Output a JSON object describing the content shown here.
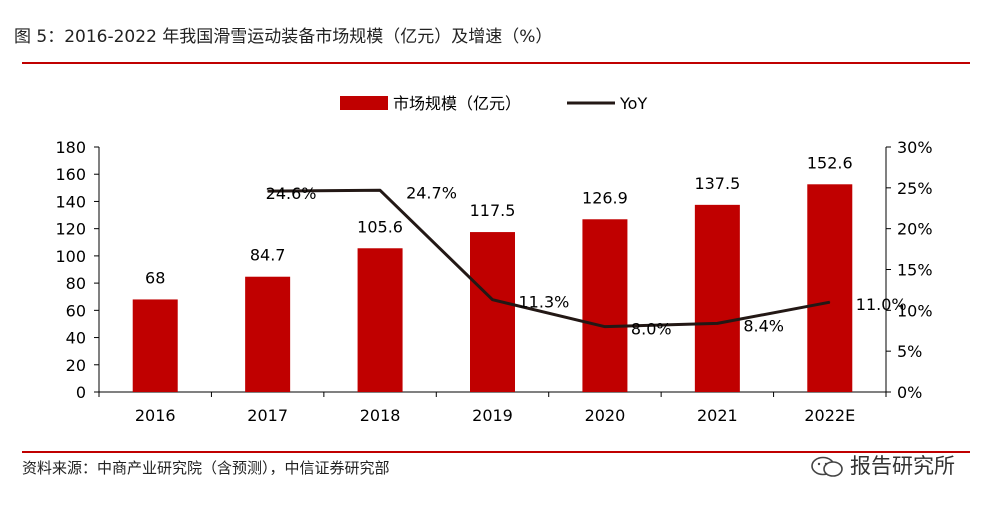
{
  "figure": {
    "title": "图 5：2016-2022 年我国滑雪运动装备市场规模（亿元）及增速（%）",
    "source": "资料来源：中商产业研究院（含预测），中信证券研究部",
    "watermark": "报告研究所"
  },
  "colors": {
    "bar": "#c00000",
    "line": "#231815",
    "rule": "#c00000"
  },
  "chart_data": {
    "type": "bar",
    "categories": [
      "2016",
      "2017",
      "2018",
      "2019",
      "2020",
      "2021",
      "2022E"
    ],
    "series": [
      {
        "name": "市场规模（亿元）",
        "type": "bar",
        "axis": "left",
        "values": [
          68,
          84.7,
          105.6,
          117.5,
          126.9,
          137.5,
          152.6
        ],
        "labels": [
          "68",
          "84.7",
          "105.6",
          "117.5",
          "126.9",
          "137.5",
          "152.6"
        ]
      },
      {
        "name": "YoY",
        "type": "line",
        "axis": "right",
        "values": [
          null,
          24.6,
          24.7,
          11.3,
          8.0,
          8.4,
          11.0
        ],
        "labels": [
          "",
          "24.6%",
          "24.7%",
          "11.3%",
          "8.0%",
          "8.4%",
          "11.0%"
        ]
      }
    ],
    "ylim_left": [
      0,
      180
    ],
    "yticks_left": [
      "0",
      "20",
      "40",
      "60",
      "80",
      "100",
      "120",
      "140",
      "160",
      "180"
    ],
    "ylim_right": [
      0,
      30
    ],
    "yticks_right": [
      "0%",
      "5%",
      "10%",
      "15%",
      "20%",
      "25%",
      "30%"
    ],
    "legend_position": "top-center",
    "grid": false
  }
}
